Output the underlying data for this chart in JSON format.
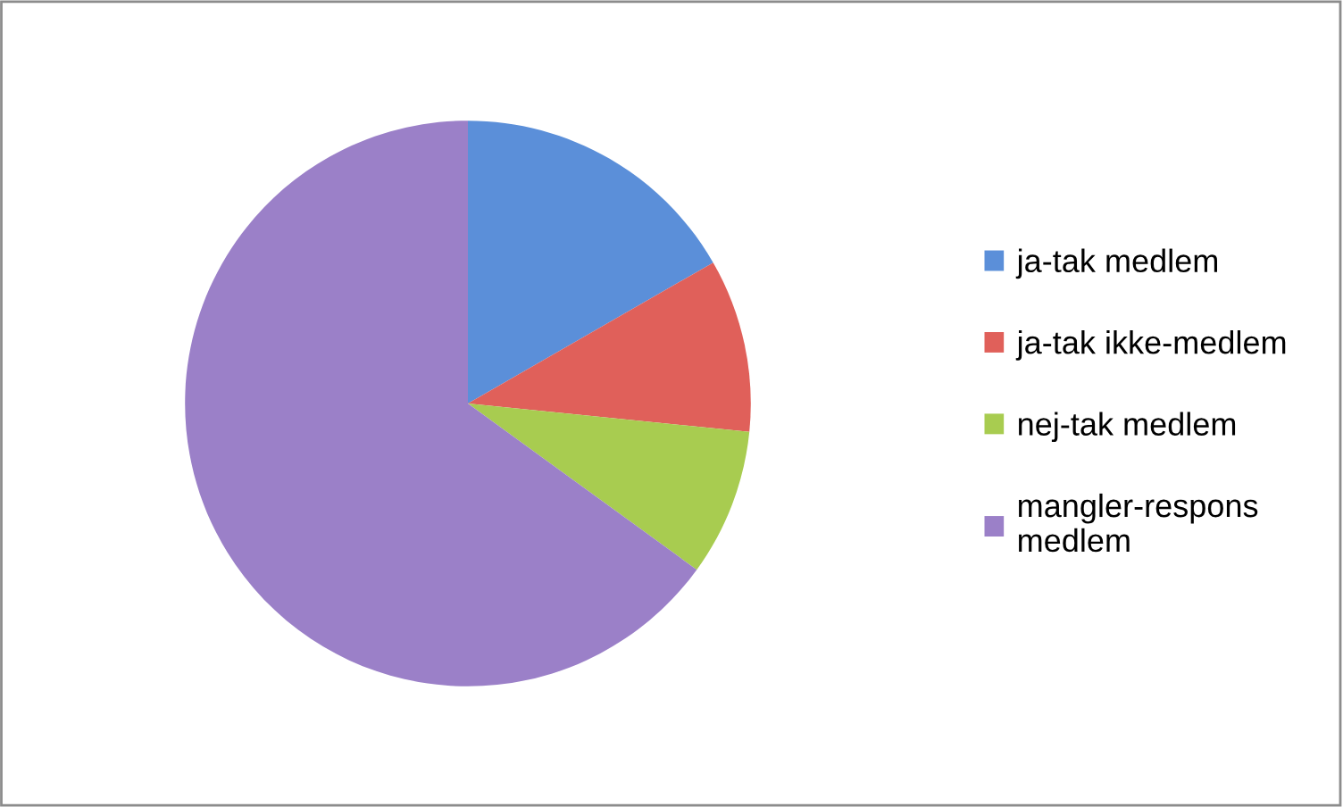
{
  "chart_data": {
    "type": "pie",
    "categories": [
      "ja-tak medlem",
      "ja-tak ikke-medlem",
      "nej-tak medlem",
      "mangler-respons medlem"
    ],
    "values": [
      16.7,
      9.9,
      8.4,
      65.0
    ],
    "colors": [
      "#5b8fd9",
      "#e0605a",
      "#a8cc50",
      "#9b80c8"
    ],
    "legend": "right"
  }
}
